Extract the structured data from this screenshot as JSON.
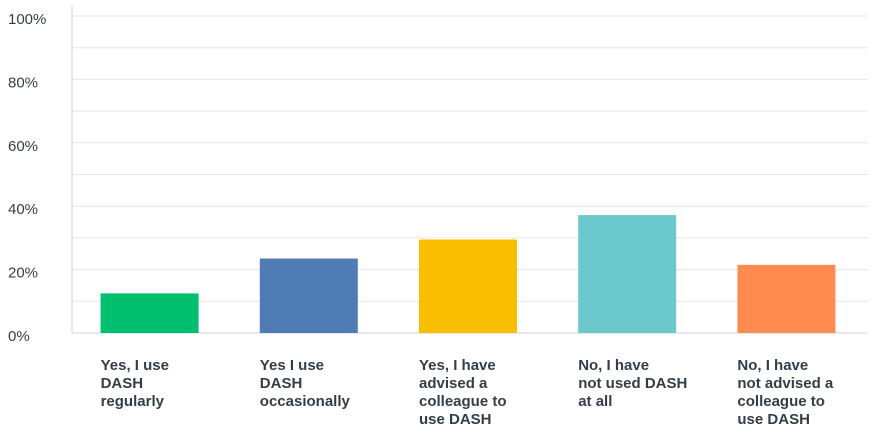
{
  "chart_data": {
    "type": "bar",
    "categories": [
      [
        "Yes, I use",
        "DASH",
        "regularly"
      ],
      [
        "Yes I use",
        "DASH",
        "occasionally"
      ],
      [
        "Yes, I have",
        "advised a",
        "colleague to",
        "use DASH"
      ],
      [
        "No, I have",
        "not used DASH",
        "at all"
      ],
      [
        "No, I have",
        "not advised a",
        "colleague to",
        "use DASH"
      ]
    ],
    "values": [
      12.5,
      23.5,
      29.5,
      37.2,
      21.5
    ],
    "colors": [
      "#00bf6f",
      "#507cb6",
      "#f9be00",
      "#6bc8cd",
      "#ff8b4f"
    ],
    "yticks": [
      0,
      20,
      40,
      60,
      80,
      100
    ],
    "ytick_labels": [
      "0%",
      "20%",
      "40%",
      "60%",
      "80%",
      "100%"
    ],
    "ylim": [
      0,
      100
    ],
    "grid": true
  }
}
